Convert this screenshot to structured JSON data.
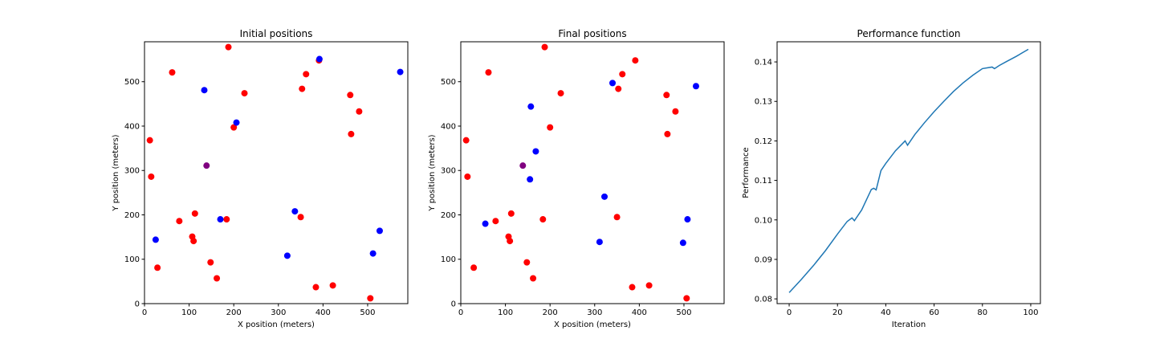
{
  "colors": {
    "red": "#ff0000",
    "blue": "#0000ff",
    "purple": "#800080",
    "line": "#1f77b4"
  },
  "chart_data": [
    {
      "type": "scatter",
      "title": "Initial positions",
      "xlabel": "X position (meters)",
      "ylabel": "Y position (meters)",
      "xlim": [
        0,
        590
      ],
      "ylim": [
        0,
        590
      ],
      "xticks": [
        0,
        100,
        200,
        300,
        400,
        500
      ],
      "yticks": [
        0,
        100,
        200,
        300,
        400,
        500
      ],
      "grid": false,
      "series": [
        {
          "color": "red",
          "points": [
            [
              188,
              578
            ],
            [
              62,
              521
            ],
            [
              224,
              474
            ],
            [
              353,
              484
            ],
            [
              362,
              517
            ],
            [
              391,
              548
            ],
            [
              461,
              470
            ],
            [
              481,
              433
            ],
            [
              463,
              382
            ],
            [
              12,
              368
            ],
            [
              200,
              397
            ],
            [
              15,
              286
            ],
            [
              113,
              203
            ],
            [
              78,
              186
            ],
            [
              184,
              190
            ],
            [
              350,
              195
            ],
            [
              107,
              151
            ],
            [
              110,
              141
            ],
            [
              148,
              93
            ],
            [
              29,
              81
            ],
            [
              162,
              57
            ],
            [
              384,
              37
            ],
            [
              422,
              41
            ],
            [
              506,
              12
            ]
          ]
        },
        {
          "color": "blue",
          "points": [
            [
              134,
              481
            ],
            [
              206,
              408
            ],
            [
              392,
              551
            ],
            [
              573,
              522
            ],
            [
              170,
              190
            ],
            [
              337,
              208
            ],
            [
              25,
              144
            ],
            [
              320,
              108
            ],
            [
              512,
              113
            ],
            [
              527,
              164
            ]
          ]
        },
        {
          "color": "purple",
          "points": [
            [
              139,
              311
            ]
          ]
        }
      ]
    },
    {
      "type": "scatter",
      "title": "Final positions",
      "xlabel": "X position (meters)",
      "ylabel": "Y position (meters)",
      "xlim": [
        0,
        590
      ],
      "ylim": [
        0,
        590
      ],
      "xticks": [
        0,
        100,
        200,
        300,
        400,
        500
      ],
      "yticks": [
        0,
        100,
        200,
        300,
        400,
        500
      ],
      "grid": false,
      "series": [
        {
          "color": "red",
          "points": [
            [
              188,
              578
            ],
            [
              62,
              521
            ],
            [
              224,
              474
            ],
            [
              353,
              484
            ],
            [
              362,
              517
            ],
            [
              391,
              548
            ],
            [
              461,
              470
            ],
            [
              481,
              433
            ],
            [
              463,
              382
            ],
            [
              12,
              368
            ],
            [
              200,
              397
            ],
            [
              15,
              286
            ],
            [
              113,
              203
            ],
            [
              78,
              186
            ],
            [
              184,
              190
            ],
            [
              350,
              195
            ],
            [
              107,
              151
            ],
            [
              110,
              141
            ],
            [
              148,
              93
            ],
            [
              29,
              81
            ],
            [
              162,
              57
            ],
            [
              384,
              37
            ],
            [
              422,
              41
            ],
            [
              506,
              12
            ]
          ]
        },
        {
          "color": "blue",
          "points": [
            [
              340,
              497
            ],
            [
              157,
              444
            ],
            [
              527,
              490
            ],
            [
              168,
              343
            ],
            [
              155,
              280
            ],
            [
              322,
              241
            ],
            [
              55,
              180
            ],
            [
              508,
              190
            ],
            [
              311,
              139
            ],
            [
              498,
              137
            ]
          ]
        },
        {
          "color": "purple",
          "points": [
            [
              139,
              311
            ]
          ]
        }
      ]
    },
    {
      "type": "line",
      "title": "Performance function",
      "xlabel": "Iteration",
      "ylabel": "Performance",
      "xlim": [
        -5,
        104
      ],
      "ylim": [
        0.0788,
        0.1451
      ],
      "xticks": [
        0,
        20,
        40,
        60,
        80,
        100
      ],
      "yticks": [
        "0.08",
        "0.09",
        "0.10",
        "0.11",
        "0.12",
        "0.13",
        "0.14"
      ],
      "grid": false,
      "x": [
        0,
        5,
        10,
        15,
        20,
        24,
        26,
        27,
        30,
        34,
        35,
        36,
        38,
        40,
        44,
        48,
        49,
        52,
        56,
        60,
        64,
        68,
        72,
        76,
        80,
        84,
        85,
        87,
        90,
        94,
        99
      ],
      "y": [
        0.0816,
        0.0849,
        0.0884,
        0.0922,
        0.0964,
        0.0996,
        0.1005,
        0.0998,
        0.1025,
        0.1077,
        0.108,
        0.1076,
        0.1125,
        0.1143,
        0.1175,
        0.12,
        0.1189,
        0.1216,
        0.1246,
        0.1274,
        0.13,
        0.1325,
        0.1347,
        0.1366,
        0.1383,
        0.1387,
        0.1383,
        0.1391,
        0.1401,
        0.1414,
        0.1432
      ]
    }
  ]
}
